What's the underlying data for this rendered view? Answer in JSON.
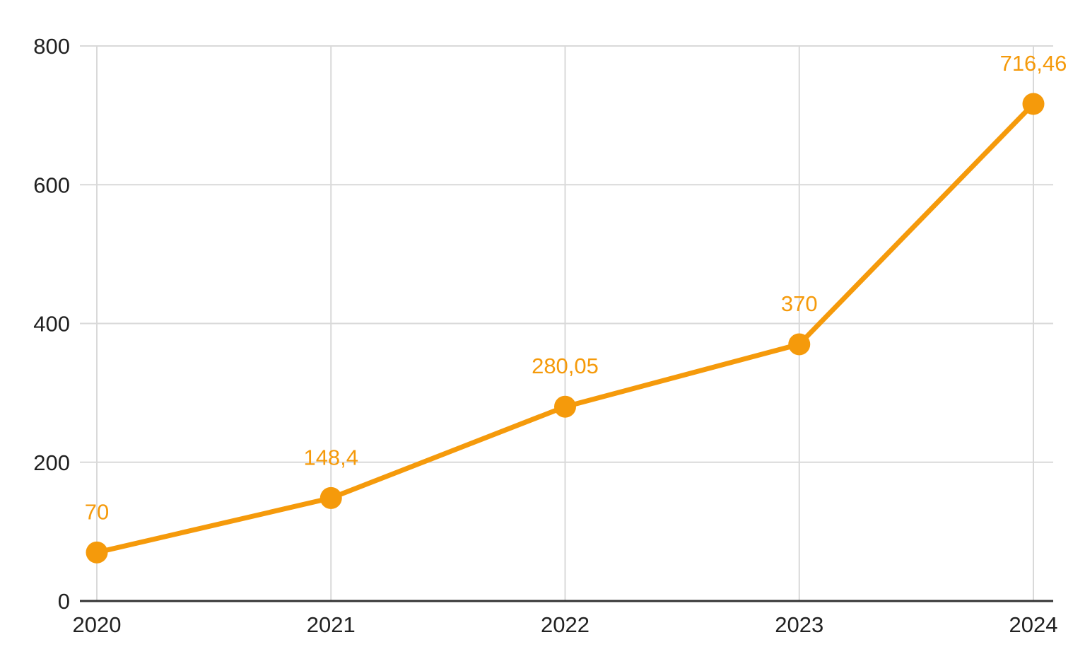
{
  "chart_data": {
    "type": "line",
    "title": "",
    "xlabel": "",
    "ylabel": "",
    "categories": [
      "2020",
      "2021",
      "2022",
      "2023",
      "2024"
    ],
    "series": [
      {
        "name": "value",
        "values": [
          70,
          148.4,
          280.05,
          370,
          716.46
        ],
        "point_labels": [
          "70",
          "148,4",
          "280,05",
          "370",
          "716,46"
        ]
      }
    ],
    "ylim": [
      0,
      800
    ],
    "yticks": [
      0,
      200,
      400,
      600,
      800
    ],
    "ytick_labels": [
      "0",
      "200",
      "400",
      "600",
      "800"
    ],
    "grid": true,
    "legend_position": "none",
    "colors": {
      "series": "#F59A0B",
      "data_label": "#F59A0B",
      "gridline": "#D9D9D9",
      "axis_line": "#333333",
      "tick_text": "#212121",
      "background": "#FFFFFF"
    }
  }
}
